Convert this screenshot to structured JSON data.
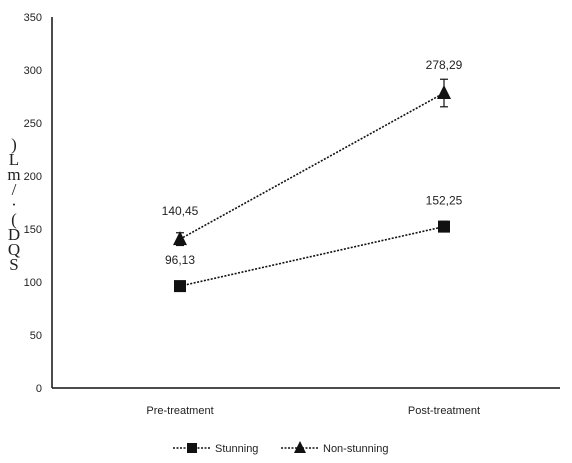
{
  "chart_data": {
    "type": "line",
    "title": "",
    "xlabel": "",
    "ylabel": ") L m / · ( D Q S",
    "categories": [
      "Pre-treatment",
      "Post-treatment"
    ],
    "ylim": [
      0,
      350
    ],
    "yticks": [
      0,
      50,
      100,
      150,
      200,
      250,
      300,
      350
    ],
    "grid": false,
    "legend_position": "bottom",
    "series": [
      {
        "name": "Stunning",
        "marker": "square",
        "values": [
          96.13,
          152.25
        ],
        "value_labels": [
          "96,13",
          "152,25"
        ],
        "error": [
          3,
          5
        ],
        "color": "#111111"
      },
      {
        "name": "Non-stunning",
        "marker": "triangle",
        "values": [
          140.45,
          278.29
        ],
        "value_labels": [
          "140,45",
          "278,29"
        ],
        "error": [
          6,
          13
        ],
        "color": "#111111"
      }
    ]
  }
}
